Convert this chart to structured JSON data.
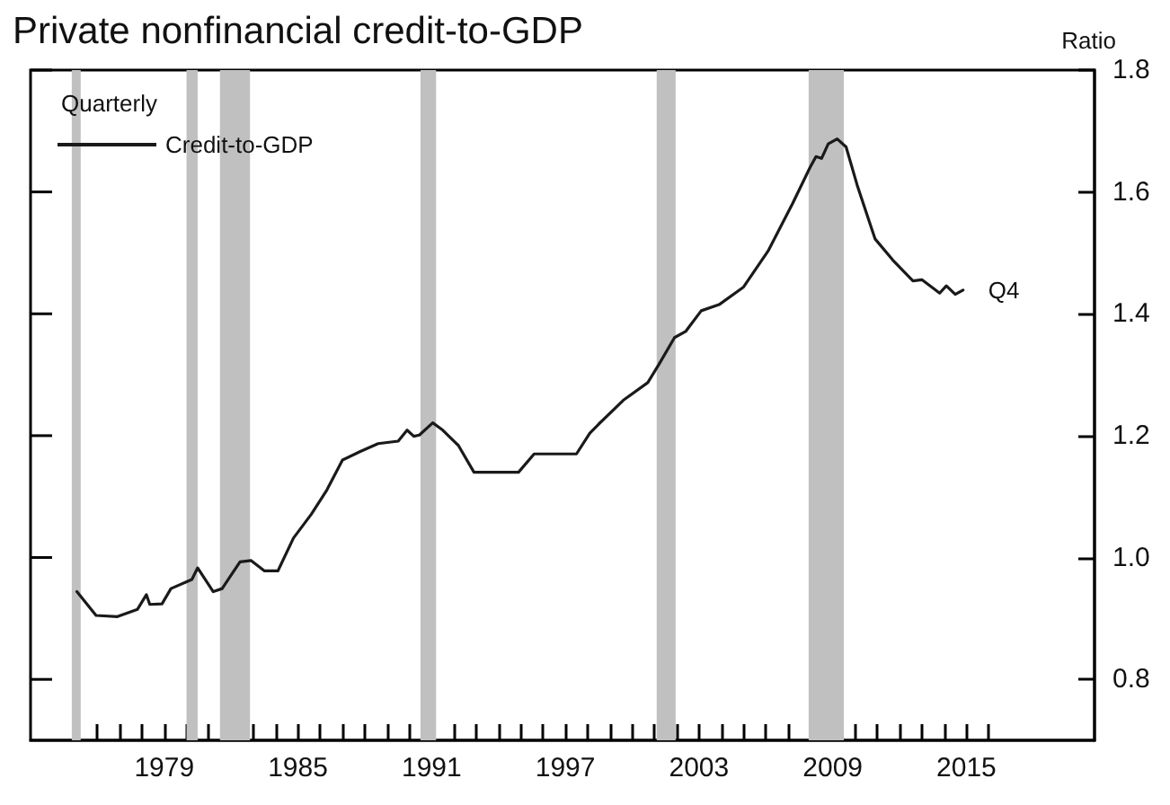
{
  "chart_data": {
    "type": "line",
    "title": "Private nonfinancial credit-to-GDP",
    "ylabel": "Ratio",
    "legend_title": "Quarterly",
    "legend": "top left",
    "grid": false,
    "marker": "none",
    "line_style": "solid",
    "xlim": [
      1973,
      2020.75
    ],
    "ylim": [
      0.7,
      1.8
    ],
    "yticks": [
      0.8,
      {
        "value": 1,
        "label": "1.0"
      },
      1.2,
      1.4,
      1.6,
      1.8
    ],
    "xticks": [
      {
        "value": 1975,
        "label": null
      },
      {
        "value": 1976,
        "label": null
      },
      {
        "value": 1977,
        "label": null
      },
      {
        "value": 1978,
        "label": null
      },
      {
        "value": 1979,
        "label": "1979"
      },
      {
        "value": 1980,
        "label": null
      },
      {
        "value": 1981,
        "label": null
      },
      {
        "value": 1982,
        "label": null
      },
      {
        "value": 1983,
        "label": null
      },
      {
        "value": 1984,
        "label": null
      },
      {
        "value": 1985,
        "label": "1985"
      },
      {
        "value": 1986,
        "label": null
      },
      {
        "value": 1987,
        "label": null
      },
      {
        "value": 1988,
        "label": null
      },
      {
        "value": 1989,
        "label": null
      },
      {
        "value": 1990,
        "label": null
      },
      {
        "value": 1991,
        "label": "1991"
      },
      {
        "value": 1992,
        "label": null
      },
      {
        "value": 1993,
        "label": null
      },
      {
        "value": 1994,
        "label": null
      },
      {
        "value": 1995,
        "label": null
      },
      {
        "value": 1996,
        "label": null
      },
      {
        "value": 1997,
        "label": "1997"
      },
      {
        "value": 1998,
        "label": null
      },
      {
        "value": 1999,
        "label": null
      },
      {
        "value": 2000,
        "label": null
      },
      {
        "value": 2001,
        "label": null
      },
      {
        "value": 2002,
        "label": null
      },
      {
        "value": 2003,
        "label": "2003"
      },
      {
        "value": 2004,
        "label": null
      },
      {
        "value": 2005,
        "label": null
      },
      {
        "value": 2006,
        "label": null
      },
      {
        "value": 2007,
        "label": null
      },
      {
        "value": 2008,
        "label": null
      },
      {
        "value": 2009,
        "label": "2009"
      },
      {
        "value": 2010,
        "label": null
      },
      {
        "value": 2011,
        "label": null
      },
      {
        "value": 2012,
        "label": null
      },
      {
        "value": 2013,
        "label": null
      },
      {
        "value": 2014,
        "label": null
      },
      {
        "value": 2015,
        "label": "2015"
      },
      {
        "value": 2016,
        "label": null
      }
    ],
    "series": [
      {
        "name": "Credit-to-GDP",
        "color": "#1a1a1a",
        "x": [
          1975.08,
          1975.94,
          1976.9,
          1977.8,
          1978.2,
          1978.35,
          1978.9,
          1979.3,
          1980.24,
          1980.5,
          1981.2,
          1981.6,
          1982.4,
          1982.9,
          1983.5,
          1984.1,
          1984.8,
          1985.6,
          1986.3,
          1987.0,
          1987.8,
          1988.6,
          1989.5,
          1989.9,
          1990.2,
          1990.45,
          1991.05,
          1991.5,
          1992.2,
          1992.9,
          1993.95,
          1994.9,
          1995.6,
          1997.5,
          1998.1,
          1998.5,
          1999.6,
          2000.7,
          2001.2,
          2001.9,
          2002.4,
          2003.1,
          2003.9,
          2005.0,
          2006.1,
          2007.2,
          2007.98,
          2008.25,
          2008.5,
          2008.8,
          2009.2,
          2009.6,
          2010.1,
          2010.9,
          2011.7,
          2012.6,
          2013.0,
          2013.8,
          2014.1,
          2014.5,
          2014.85
        ],
        "values": [
          0.944,
          0.905,
          0.903,
          0.915,
          0.939,
          0.923,
          0.924,
          0.949,
          0.964,
          0.983,
          0.944,
          0.949,
          0.993,
          0.995,
          0.978,
          0.978,
          1.032,
          1.071,
          1.111,
          1.16,
          1.174,
          1.187,
          1.191,
          1.209,
          1.199,
          1.201,
          1.221,
          1.209,
          1.184,
          1.14,
          1.14,
          1.14,
          1.17,
          1.17,
          1.204,
          1.219,
          1.258,
          1.287,
          1.317,
          1.361,
          1.371,
          1.405,
          1.415,
          1.444,
          1.503,
          1.581,
          1.64,
          1.658,
          1.655,
          1.679,
          1.687,
          1.674,
          1.611,
          1.523,
          1.488,
          1.454,
          1.456,
          1.434,
          1.446,
          1.432,
          1.439
        ]
      }
    ],
    "bands": [
      {
        "axis": "x",
        "from": 1974.85,
        "to": 1975.25,
        "color": "#c0c0c0"
      },
      {
        "axis": "x",
        "from": 1980.0,
        "to": 1980.5,
        "color": "#c0c0c0"
      },
      {
        "axis": "x",
        "from": 1981.5,
        "to": 1982.85,
        "color": "#c0c0c0"
      },
      {
        "axis": "x",
        "from": 1990.5,
        "to": 1991.2,
        "color": "#c0c0c0"
      },
      {
        "axis": "x",
        "from": 2001.1,
        "to": 2001.95,
        "color": "#c0c0c0"
      },
      {
        "axis": "x",
        "from": 2007.92,
        "to": 2009.5,
        "color": "#c0c0c0"
      }
    ],
    "annotations": [
      {
        "text": "Q4",
        "x": 2014.85,
        "y": 1.439
      }
    ]
  }
}
